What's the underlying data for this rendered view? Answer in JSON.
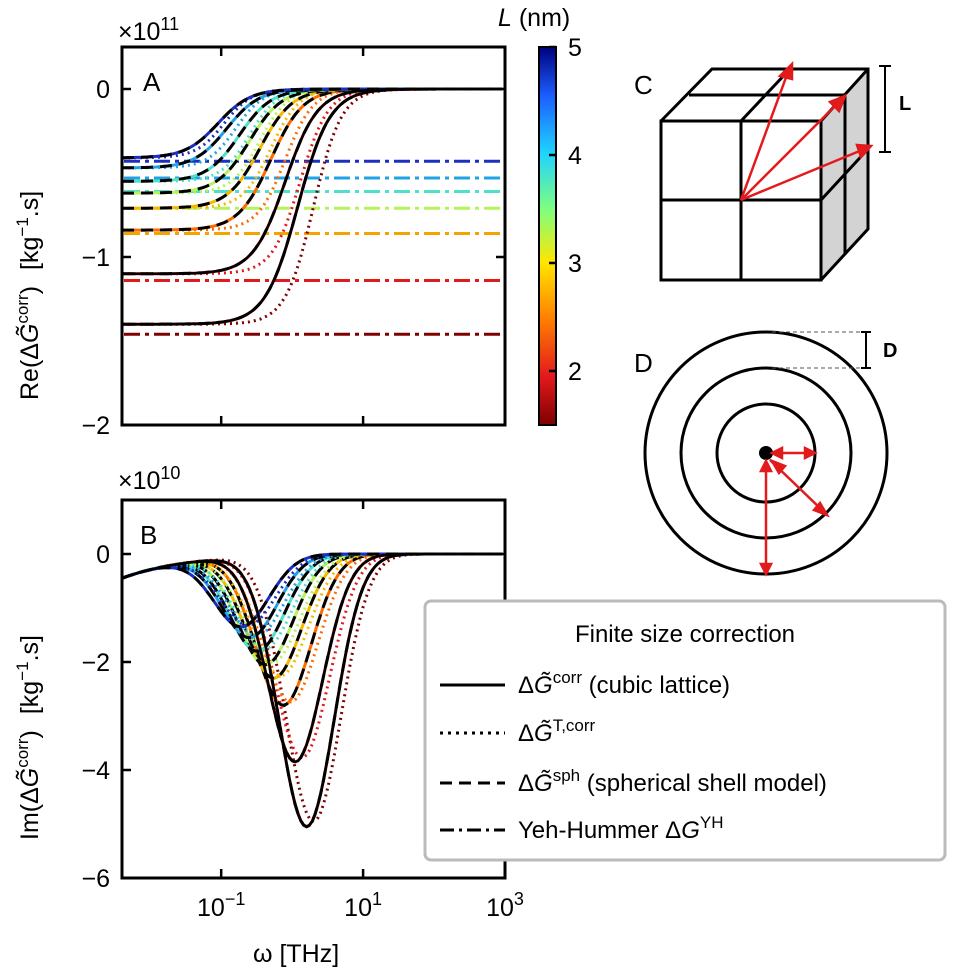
{
  "chart_data": [
    {
      "panel": "A",
      "type": "line",
      "scale_exponent": "×10",
      "scale_power": "11",
      "ylabel": "Re(ΔG̃corr)  [kg⁻¹.s]",
      "ylabel_main": "Re(Δ",
      "ylabel_g": "G̃",
      "ylabel_sup": "corr",
      "ylabel_close": ")",
      "ylabel_units": "[kg",
      "ylabel_units_sup": "−1",
      "ylabel_units_close": ".s]",
      "xscale": "log",
      "xlim": [
        0.004,
        1000
      ],
      "ylim": [
        -2,
        0.25
      ],
      "yticks": [
        0,
        -1,
        -2
      ],
      "ytick_labels": [
        "0",
        "−1",
        "−2"
      ],
      "grid": false,
      "series_L": [
        1.5,
        2.0,
        2.5,
        3.0,
        3.5,
        4.0,
        4.5,
        5.0
      ],
      "series_colors": [
        "#7f0000",
        "#e31a1c",
        "#ff6a00",
        "#f5b800",
        "#b6f25a",
        "#4fe0c8",
        "#1fa3e6",
        "#1c2fbf",
        "#00007f"
      ],
      "yh_values": [
        -1.46,
        -1.14,
        -0.86,
        -0.71,
        -0.61,
        -0.53,
        -0.43
      ],
      "yh_colors": [
        "#7f0000",
        "#e31a1c",
        "#f5a300",
        "#b6f25a",
        "#4fe0c8",
        "#1fa3e6",
        "#1c2fbf"
      ],
      "curves": [
        {
          "start": -1.4,
          "mid": 1.2,
          "dotted_mid": 2.0
        },
        {
          "start": -1.1,
          "mid": 0.8,
          "dotted_mid": 1.3
        },
        {
          "start": -0.84,
          "mid": 0.5,
          "dotted_mid": 0.8
        },
        {
          "start": -0.71,
          "mid": 0.35,
          "dotted_mid": 0.5
        },
        {
          "start": -0.62,
          "mid": 0.25,
          "dotted_mid": 0.35
        },
        {
          "start": -0.55,
          "mid": 0.18,
          "dotted_mid": 0.25
        },
        {
          "start": -0.47,
          "mid": 0.12,
          "dotted_mid": 0.16
        },
        {
          "start": -0.41,
          "mid": 0.09,
          "dotted_mid": 0.11
        }
      ]
    },
    {
      "panel": "B",
      "type": "line",
      "scale_exponent": "×10",
      "scale_power": "10",
      "ylabel": "Im(ΔG̃corr)  [kg⁻¹.s]",
      "ylabel_main": "Im(Δ",
      "ylabel_g": "G̃",
      "ylabel_sup": "corr",
      "ylabel_close": ")",
      "ylabel_units": "[kg",
      "ylabel_units_sup": "−1",
      "ylabel_units_close": ".s]",
      "xlabel": "ω [THz]",
      "xscale": "log",
      "xlim": [
        0.004,
        1000
      ],
      "xticks": [
        0.1,
        10,
        1000
      ],
      "xtick_base": "10",
      "xtick_powers": [
        "−1",
        "1",
        "3"
      ],
      "ylim": [
        -6,
        1
      ],
      "yticks": [
        0,
        -2,
        -4,
        -6
      ],
      "ytick_labels": [
        "0",
        "−2",
        "−4",
        "−6"
      ],
      "grid": false,
      "minima": [
        {
          "w": 1.6,
          "value": -5.05
        },
        {
          "w": 1.1,
          "value": -3.85
        },
        {
          "w": 0.75,
          "value": -2.8
        },
        {
          "w": 0.55,
          "value": -2.3
        },
        {
          "w": 0.42,
          "value": -2.05
        },
        {
          "w": 0.32,
          "value": -1.8
        },
        {
          "w": 0.25,
          "value": -1.55
        },
        {
          "w": 0.19,
          "value": -1.35
        }
      ]
    }
  ],
  "colorbar": {
    "label_italic": "L",
    "label_rest": " (nm)",
    "ticks": [
      "5",
      "4",
      "3",
      "2"
    ],
    "tick_values": [
      5,
      4,
      3,
      2
    ],
    "range": [
      1.5,
      5.0
    ]
  },
  "legend": {
    "title": "Finite size correction",
    "entries": [
      {
        "style": "solid",
        "prefix": "Δ",
        "symbol": "G̃",
        "sup": "corr",
        "suffix": " (cubic lattice)"
      },
      {
        "style": "dotted",
        "prefix": "Δ",
        "symbol": "G̃",
        "sup": "T,corr",
        "suffix": ""
      },
      {
        "style": "dashed",
        "prefix": "Δ",
        "symbol": "G̃",
        "sup": "sph",
        "suffix": " (spherical shell model)"
      },
      {
        "style": "dashdot",
        "prefix": "Yeh-Hummer Δ",
        "symbol": "G",
        "sup": "YH",
        "suffix": ""
      }
    ]
  },
  "panels": {
    "a": "A",
    "b": "B",
    "c": "C",
    "d": "D",
    "c_dim": "L",
    "d_dim": "D"
  }
}
